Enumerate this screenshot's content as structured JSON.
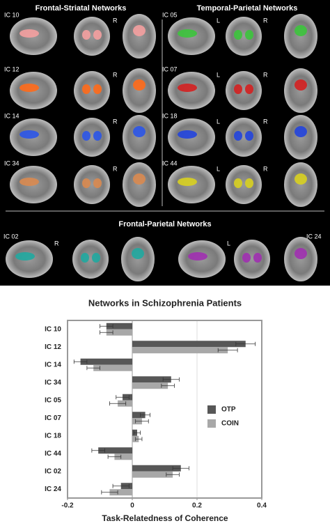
{
  "brain_panel": {
    "sections": [
      {
        "title": "Frontal-Striatal Networks",
        "rows": [
          {
            "label": "IC 10",
            "markers": [
              "R"
            ],
            "color": "#f4a0a0"
          },
          {
            "label": "IC 12",
            "markers": [
              "R"
            ],
            "color": "#ff6a1a"
          },
          {
            "label": "IC 14",
            "markers": [
              "R"
            ],
            "color": "#2b55e8"
          },
          {
            "label": "IC 34",
            "markers": [
              "R"
            ],
            "color": "#d98a50"
          }
        ]
      },
      {
        "title": "Temporal-Parietal Networks",
        "rows": [
          {
            "label": "IC 05",
            "markers": [
              "L",
              "R"
            ],
            "color": "#3cc43c"
          },
          {
            "label": "IC 07",
            "markers": [
              "L",
              "R"
            ],
            "color": "#d42020"
          },
          {
            "label": "IC 18",
            "markers": [
              "L",
              "R"
            ],
            "color": "#2244dd"
          },
          {
            "label": "IC 44",
            "markers": [
              "L",
              "R"
            ],
            "color": "#d8d020"
          }
        ]
      },
      {
        "title": "Frontal-Parietal Networks",
        "rows": [
          {
            "label": "IC 02",
            "markers": [
              "R"
            ],
            "color": "#20a8a0"
          },
          {
            "label": "IC 24",
            "markers": [
              "L"
            ],
            "color": "#a030b0"
          }
        ]
      }
    ]
  },
  "chart_data": {
    "type": "hbar",
    "title": "Networks in Schizophrenia Patients",
    "xlabel": "Task-Relatedness of Coherence",
    "categories": [
      "IC 10",
      "IC 12",
      "IC 14",
      "IC 34",
      "IC 05",
      "IC 07",
      "IC 18",
      "IC 44",
      "IC 02",
      "IC 24"
    ],
    "series": [
      {
        "name": "OTP",
        "color": "#575757",
        "values": [
          -0.08,
          0.35,
          -0.16,
          0.12,
          -0.03,
          0.04,
          0.015,
          -0.105,
          0.15,
          -0.035
        ],
        "errors": [
          0.02,
          0.03,
          0.02,
          0.025,
          0.02,
          0.015,
          0.01,
          0.02,
          0.025,
          0.025
        ]
      },
      {
        "name": "COIN",
        "color": "#a8a8a8",
        "values": [
          -0.08,
          0.295,
          -0.12,
          0.11,
          -0.045,
          0.03,
          0.02,
          -0.055,
          0.125,
          -0.07
        ],
        "errors": [
          0.02,
          0.03,
          0.02,
          0.02,
          0.025,
          0.02,
          0.01,
          0.02,
          0.02,
          0.025
        ]
      }
    ],
    "xlim": [
      -0.2,
      0.4
    ],
    "xticks": [
      -0.2,
      0,
      0.2,
      0.4
    ],
    "grid": true,
    "legend": "right"
  }
}
